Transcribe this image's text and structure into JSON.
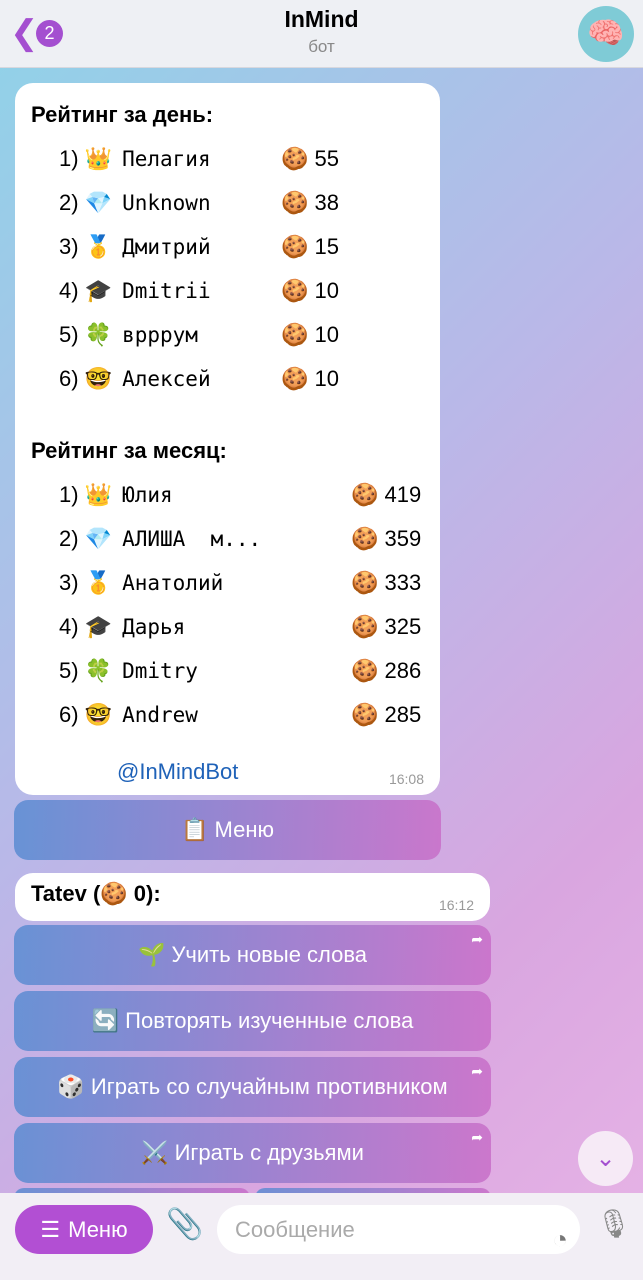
{
  "header": {
    "back_badge": "2",
    "title": "InMind",
    "subtitle": "бот",
    "avatar_icon": "brain-icon"
  },
  "rating": {
    "day_title": "Рейтинг за день:",
    "day": [
      {
        "n": "1)",
        "emoji": "👑",
        "name": "Пелагия",
        "score": "55"
      },
      {
        "n": "2)",
        "emoji": "💎",
        "name": "Unknown",
        "score": "38"
      },
      {
        "n": "3)",
        "emoji": "🥇",
        "name": "Дмитрий",
        "score": "15"
      },
      {
        "n": "4)",
        "emoji": "🎓",
        "name": "Dmitrii",
        "score": "10"
      },
      {
        "n": "5)",
        "emoji": "🍀",
        "name": "врррум",
        "score": "10"
      },
      {
        "n": "6)",
        "emoji": "🤓",
        "name": "Алексей",
        "score": "10"
      }
    ],
    "month_title": "Рейтинг за месяц:",
    "month": [
      {
        "n": "1)",
        "emoji": "👑",
        "name": "Юлия",
        "score": "419"
      },
      {
        "n": "2)",
        "emoji": "💎",
        "name": "АЛИША  м...",
        "score": "359"
      },
      {
        "n": "3)",
        "emoji": "🥇",
        "name": "Анатолий",
        "score": "333"
      },
      {
        "n": "4)",
        "emoji": "🎓",
        "name": "Дарья",
        "score": "325"
      },
      {
        "n": "5)",
        "emoji": "🍀",
        "name": "Dmitry",
        "score": "286"
      },
      {
        "n": "6)",
        "emoji": "🤓",
        "name": "Andrew",
        "score": "285"
      }
    ],
    "cookie": "🍪",
    "link": "@InMindBot",
    "time": "16:08"
  },
  "menu_button": "📋 Меню",
  "message2": {
    "text": "Tatev (🍪 0):",
    "time": "16:12"
  },
  "buttons": [
    "🌱 Учить новые слова",
    "🔄 Повторять изученные слова",
    "🎲 Играть со случайным противником",
    "⚔️ Играть с друзьями"
  ],
  "bottom": {
    "menu": "Меню",
    "placeholder": "Сообщение"
  }
}
